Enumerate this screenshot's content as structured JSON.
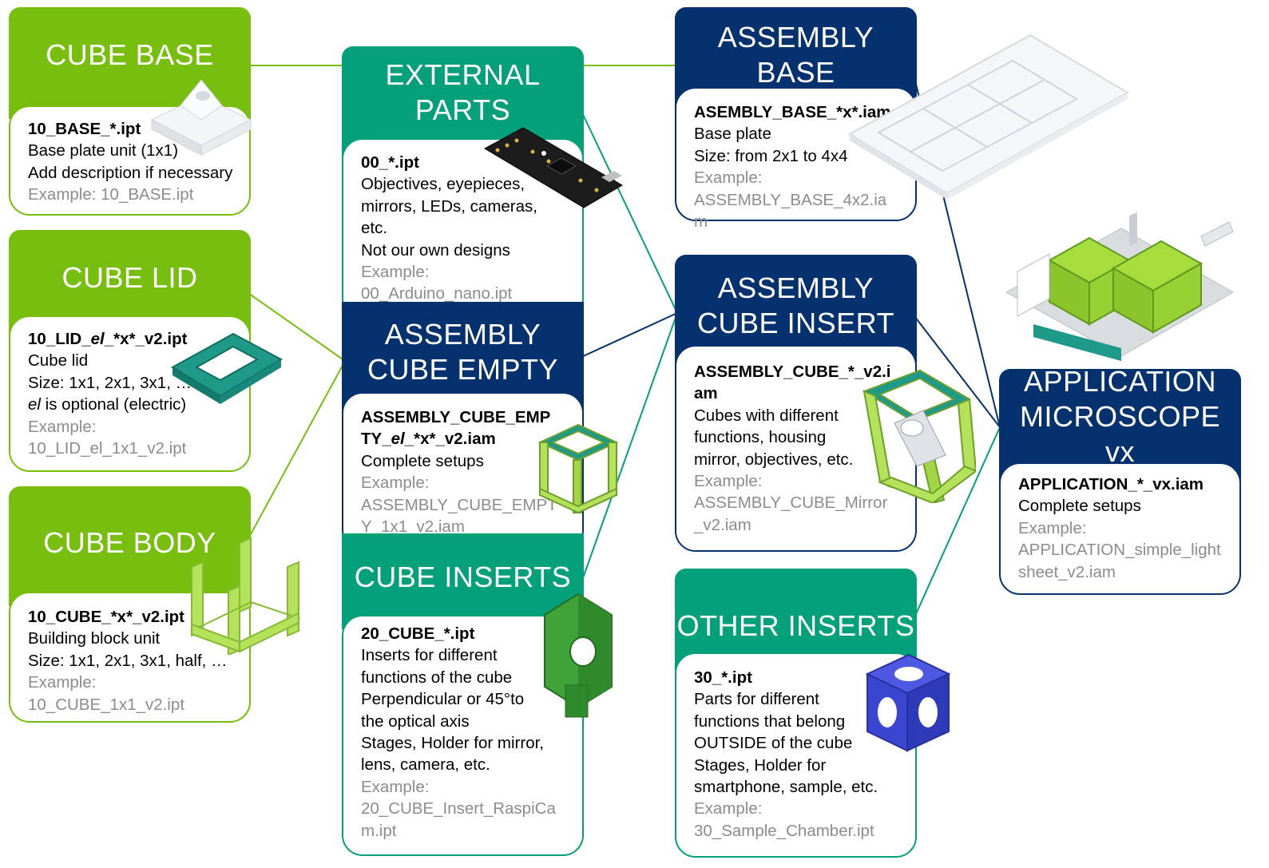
{
  "colors": {
    "green": "#78be0f",
    "teal": "#04a07a",
    "navy": "#06316f"
  },
  "cards": {
    "cube_base": {
      "title": "CUBE BASE",
      "file": "10_BASE_*.ipt",
      "lines": [
        "Base plate unit (1x1)",
        "Add description if necessary"
      ],
      "example_label": "Example: 10_BASE.ipt",
      "example": ""
    },
    "cube_lid": {
      "title": "CUBE LID",
      "file_parts": [
        "10_LID_",
        "el",
        "_*x*_v2.ipt"
      ],
      "lines": [
        "Cube lid",
        "Size: 1x1, 2x1, 3x1, …"
      ],
      "note_parts": [
        "el",
        " is optional (electric)"
      ],
      "example_label": "Example:",
      "example": "10_LID_el_1x1_v2.ipt"
    },
    "cube_body": {
      "title": "CUBE BODY",
      "file": "10_CUBE_*x*_v2.ipt",
      "lines": [
        "Building block unit",
        "Size: 1x1, 2x1, 3x1, half, …"
      ],
      "example_label": "Example:",
      "example": "10_CUBE_1x1_v2.ipt"
    },
    "external_parts": {
      "title": "EXTERNAL PARTS",
      "file": "00_*.ipt",
      "lines": [
        "Objectives, eyepieces,",
        "mirrors, LEDs, cameras,",
        "etc.",
        "Not our own designs"
      ],
      "example_label": "Example:",
      "example": "00_Arduino_nano.ipt"
    },
    "assembly_cube_empty": {
      "title": "ASSEMBLY CUBE EMPTY",
      "file_parts": [
        "ASSEMBLY_CUBE_EMPTY_",
        "el",
        "_*x*_v2.iam"
      ],
      "lines": [
        "Complete setups"
      ],
      "example_label": "Example:",
      "example": "ASSEMBLY_CUBE_EMPTY_1x1_v2.iam"
    },
    "cube_inserts": {
      "title": "CUBE INSERTS",
      "file": "20_CUBE_*.ipt",
      "lines": [
        "Inserts for different",
        "functions of the cube",
        "Perpendicular or 45°to",
        "the optical axis",
        "Stages, Holder for mirror,",
        "lens, camera, etc."
      ],
      "example_label": "Example:",
      "example": "20_CUBE_Insert_RaspiCam.ipt"
    },
    "assembly_base": {
      "title": "ASSEMBLY BASE",
      "file": "ASEMBLY_BASE_*x*.iam",
      "lines": [
        "Base plate",
        "Size: from 2x1 to 4x4"
      ],
      "example_label": "Example:",
      "example": "ASSEMBLY_BASE_4x2.iam"
    },
    "assembly_cube_insert": {
      "title": "ASSEMBLY CUBE INSERT",
      "file": "ASSEMBLY_CUBE_*_v2.iam",
      "lines": [
        "Cubes with different",
        "functions, housing",
        "mirror, objectives, etc."
      ],
      "example_label": "Example:",
      "example": "ASSEMBLY_CUBE_Mirror_v2.iam"
    },
    "other_inserts": {
      "title": "OTHER INSERTS",
      "file": "30_*.ipt",
      "lines": [
        "Parts for different",
        "functions that belong",
        "OUTSIDE of the cube",
        "Stages, Holder for",
        "smartphone, sample, etc."
      ],
      "example_label": "Example:",
      "example": "30_Sample_Chamber.ipt"
    },
    "application": {
      "title": "APPLICATION MICROSCOPE vx",
      "file": "APPLICATION_*_vx.iam",
      "lines": [
        "Complete setups"
      ],
      "example_label": "Example:",
      "example": "APPLICATION_simple_lightsheet_v2.iam"
    }
  },
  "icons": [
    "base-plate-icon",
    "lid-frame-icon",
    "cube-body-icon",
    "arduino-board-icon",
    "empty-cube-icon",
    "insert-holder-icon",
    "base-grid-icon",
    "cube-insert-icon",
    "blue-cube-icon",
    "microscope-assembly-icon"
  ]
}
